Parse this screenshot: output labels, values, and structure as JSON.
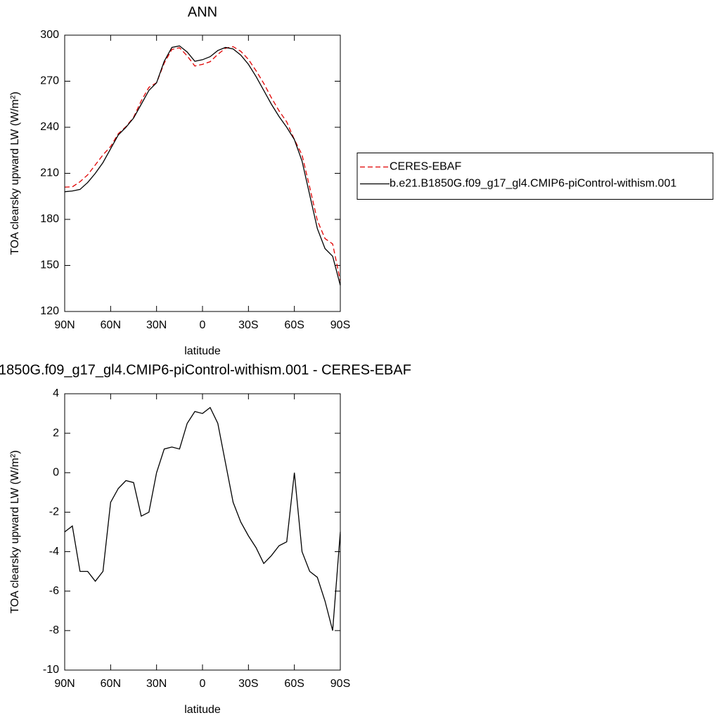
{
  "chart_data": [
    {
      "type": "line",
      "title": "ANN",
      "xlabel": "latitude",
      "ylabel": "TOA clearsky upward LW (W/m²)",
      "x": [
        90,
        85,
        80,
        75,
        70,
        65,
        60,
        55,
        50,
        45,
        40,
        35,
        30,
        25,
        20,
        15,
        10,
        5,
        0,
        -5,
        -10,
        -15,
        -20,
        -25,
        -30,
        -35,
        -40,
        -45,
        -50,
        -55,
        -60,
        -65,
        -70,
        -75,
        -80,
        -85,
        -90
      ],
      "series": [
        {
          "name": "CERES-EBAF",
          "color": "#e00000",
          "dash": true,
          "values": [
            201,
            201.2,
            204.5,
            209,
            215.5,
            222,
            227.5,
            235.8,
            240.4,
            246.5,
            257.2,
            266,
            269,
            281.8,
            290.7,
            291.8,
            286.5,
            279.9,
            281,
            282.7,
            287.5,
            291.5,
            292.5,
            289.5,
            284.2,
            276.8,
            268.6,
            259.2,
            250.7,
            243.5,
            232,
            222,
            201,
            179.3,
            167.5,
            164,
            140
          ]
        },
        {
          "name": "b.e21.B1850G.f09_g17_gl4.CMIP6-piControl-withism.001",
          "color": "#000000",
          "dash": false,
          "values": [
            198,
            198.5,
            199.5,
            204,
            210,
            217,
            226,
            235,
            240,
            246,
            255,
            264,
            269,
            283,
            292,
            293,
            289,
            283,
            284,
            286,
            290,
            292,
            291,
            287,
            281,
            273,
            264,
            255,
            247,
            240,
            232,
            218,
            196,
            174,
            161,
            156,
            137
          ]
        }
      ],
      "xlim": [
        90,
        -90
      ],
      "xticks": [
        {
          "value": 90,
          "label": "90N"
        },
        {
          "value": 60,
          "label": "60N"
        },
        {
          "value": 30,
          "label": "30N"
        },
        0,
        {
          "value": -30,
          "label": "30S"
        },
        {
          "value": -60,
          "label": "60S"
        },
        {
          "value": -90,
          "label": "90S"
        }
      ],
      "ylim": [
        120,
        300
      ],
      "yticks": [
        120,
        150,
        180,
        210,
        240,
        270,
        300
      ],
      "legend": "right"
    },
    {
      "type": "line",
      "title": "1850G.f09_g17_gl4.CMIP6-piControl-withism.001 - CERES-EBAF",
      "xlabel": "latitude",
      "ylabel": "TOA clearsky upward LW (W/m²)",
      "x": [
        90,
        85,
        80,
        75,
        70,
        65,
        60,
        55,
        50,
        45,
        40,
        35,
        30,
        25,
        20,
        15,
        10,
        5,
        0,
        -5,
        -10,
        -15,
        -20,
        -25,
        -30,
        -35,
        -40,
        -45,
        -50,
        -55,
        -60,
        -65,
        -70,
        -75,
        -80,
        -85,
        -90
      ],
      "series": [
        {
          "color": "#000000",
          "dash": false,
          "values": [
            -3,
            -2.7,
            -5,
            -5,
            -5.5,
            -5,
            -1.5,
            -0.8,
            -0.4,
            -0.5,
            -2.2,
            -2,
            0,
            1.2,
            1.3,
            1.2,
            2.5,
            3.1,
            3,
            3.3,
            2.5,
            0.5,
            -1.5,
            -2.5,
            -3.2,
            -3.8,
            -4.6,
            -4.2,
            -3.7,
            -3.5,
            0,
            -4,
            -5,
            -5.3,
            -6.5,
            -8,
            -3
          ]
        }
      ],
      "xlim": [
        90,
        -90
      ],
      "xticks": [
        {
          "value": 90,
          "label": "90N"
        },
        {
          "value": 60,
          "label": "60N"
        },
        {
          "value": 30,
          "label": "30N"
        },
        0,
        {
          "value": -30,
          "label": "30S"
        },
        {
          "value": -60,
          "label": "60S"
        },
        {
          "value": -90,
          "label": "90S"
        }
      ],
      "ylim": [
        -10,
        4
      ],
      "yticks": [
        -10,
        -8,
        -6,
        -4,
        -2,
        0,
        2,
        4
      ]
    }
  ]
}
